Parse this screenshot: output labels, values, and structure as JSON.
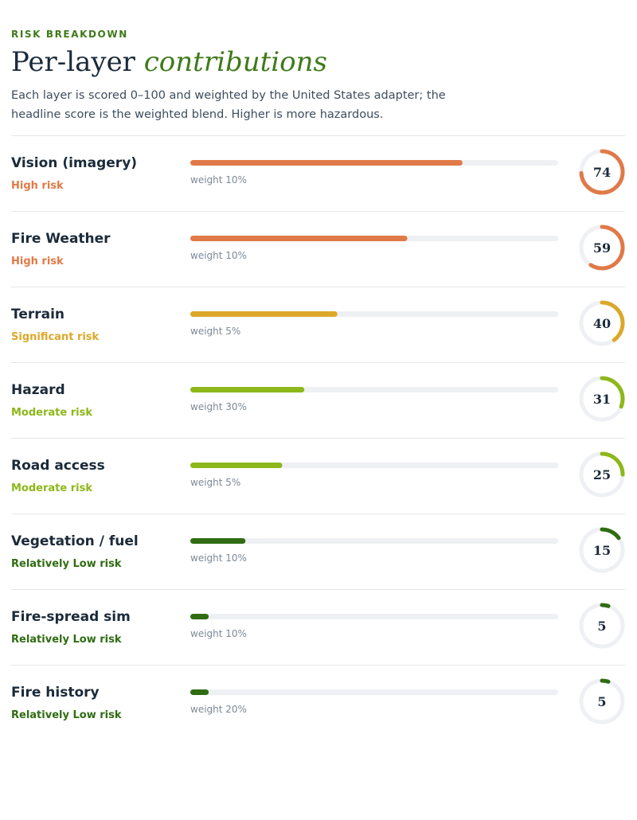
{
  "header": {
    "eyebrow": "RISK BREAKDOWN",
    "title": "Per-layer",
    "title_accent": "contributions",
    "description": "Each layer is scored 0–100 and weighted by the United States adapter; the headline score is the weighted blend. Higher is more hazardous."
  },
  "score_range": [
    0,
    100
  ],
  "layers": [
    {
      "name": "Vision (imagery)",
      "risk": "High risk",
      "score": 74,
      "weight": "weight 10%",
      "color": "#e07a48"
    },
    {
      "name": "Fire Weather",
      "risk": "High risk",
      "score": 59,
      "weight": "weight 10%",
      "color": "#e07a48"
    },
    {
      "name": "Terrain",
      "risk": "Significant risk",
      "score": 40,
      "weight": "weight 5%",
      "color": "#dca82a"
    },
    {
      "name": "Hazard",
      "risk": "Moderate risk",
      "score": 31,
      "weight": "weight 30%",
      "color": "#8db71a"
    },
    {
      "name": "Road access",
      "risk": "Moderate risk",
      "score": 25,
      "weight": "weight 5%",
      "color": "#8db71a"
    },
    {
      "name": "Vegetation / fuel",
      "risk": "Relatively Low risk",
      "score": 15,
      "weight": "weight 10%",
      "color": "#2f6c12"
    },
    {
      "name": "Fire-spread sim",
      "risk": "Relatively Low risk",
      "score": 5,
      "weight": "weight 10%",
      "color": "#2f6c12"
    },
    {
      "name": "Fire history",
      "risk": "Relatively Low risk",
      "score": 5,
      "weight": "weight 20%",
      "color": "#2f6c12"
    }
  ]
}
